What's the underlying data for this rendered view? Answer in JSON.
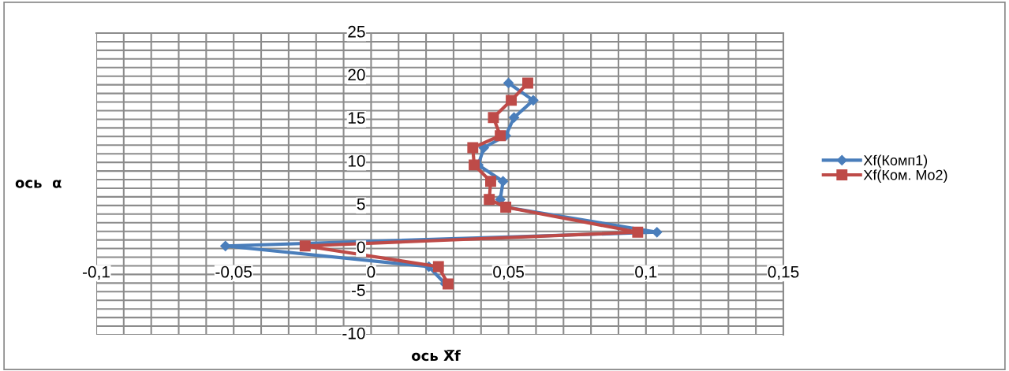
{
  "chart_data": {
    "type": "line",
    "xlabel": "ось X̅f",
    "ylabel": "ось  α",
    "xlim": [
      -0.1,
      0.15
    ],
    "ylim": [
      -10,
      25
    ],
    "xticks": [
      {
        "value": -0.1,
        "label": "-0,1"
      },
      {
        "value": -0.05,
        "label": "-0,05"
      },
      0,
      {
        "value": 0.05,
        "label": "0,05"
      },
      {
        "value": 0.1,
        "label": "0,1"
      },
      {
        "value": 0.15,
        "label": "0,15"
      }
    ],
    "yticks": [
      -10,
      -5,
      0,
      5,
      10,
      15,
      20,
      25
    ],
    "grid": true,
    "legend": "right",
    "line_style": "solid",
    "series": [
      {
        "name": "Xf(Комп1)",
        "color": "#4a7ebb",
        "marker": "diamond",
        "x": [
          0.05,
          0.059,
          0.052,
          0.049,
          0.041,
          0.039,
          0.048,
          0.047,
          0.049,
          0.104,
          -0.053,
          0.021,
          0.027
        ],
        "values": [
          19.2,
          17.2,
          15.2,
          13.1,
          11.7,
          9.7,
          7.8,
          5.7,
          4.8,
          1.9,
          0.3,
          -2.1,
          -4.1
        ]
      },
      {
        "name": "Xf(Ком. Mo2)",
        "color": "#be4b48",
        "marker": "square",
        "x": [
          0.057,
          0.051,
          0.0445,
          0.047,
          0.037,
          0.0375,
          0.0435,
          0.043,
          0.049,
          0.097,
          -0.024,
          0.0245,
          0.028
        ],
        "values": [
          19.2,
          17.2,
          15.2,
          13.1,
          11.7,
          9.7,
          7.8,
          5.7,
          4.8,
          1.9,
          0.3,
          -2.1,
          -4.1
        ]
      }
    ]
  }
}
